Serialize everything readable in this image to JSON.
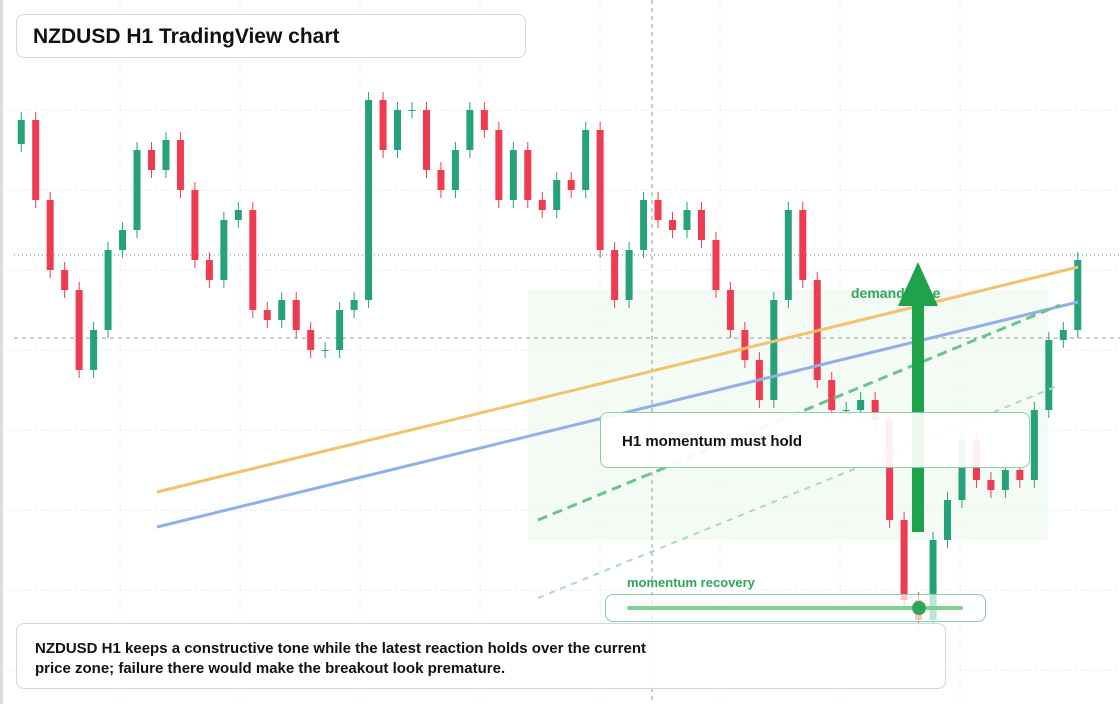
{
  "header": {
    "title": "NZDUSD H1 TradingView chart"
  },
  "chart_data": {
    "type": "candlestick",
    "ylim": [
      0,
      704
    ],
    "up_color": "#26a17b",
    "down_color": "#ef3b4f",
    "open": [
      560,
      584,
      504,
      434,
      414,
      334,
      374,
      454,
      474,
      554,
      534,
      564,
      514,
      444,
      424,
      484,
      494,
      394,
      384,
      404,
      374,
      354,
      354,
      394,
      404,
      604,
      554,
      594,
      594,
      534,
      514,
      554,
      594,
      574,
      504,
      554,
      504,
      494,
      524,
      514,
      574,
      454,
      404,
      454,
      504,
      484,
      474,
      494,
      464,
      414,
      374,
      344,
      304,
      404,
      494,
      424,
      324,
      294,
      294,
      304,
      284,
      184,
      104,
      84,
      164,
      204,
      264,
      224,
      214,
      234,
      224,
      294,
      364,
      374
    ],
    "close": [
      584,
      504,
      434,
      414,
      334,
      374,
      454,
      474,
      554,
      534,
      564,
      514,
      444,
      424,
      484,
      494,
      394,
      384,
      404,
      374,
      354,
      354,
      394,
      404,
      604,
      554,
      594,
      594,
      534,
      514,
      554,
      594,
      574,
      504,
      554,
      504,
      494,
      524,
      514,
      574,
      454,
      404,
      454,
      504,
      484,
      474,
      494,
      464,
      414,
      374,
      344,
      304,
      404,
      494,
      424,
      324,
      294,
      294,
      304,
      284,
      184,
      104,
      84,
      164,
      204,
      264,
      224,
      214,
      234,
      224,
      294,
      364,
      374,
      444
    ]
  },
  "annotations": {
    "zone": "demand zone",
    "hold": "H1 momentum must hold",
    "slider": "momentum recovery"
  },
  "footer": {
    "text": "NZDUSD H1 keeps a constructive tone while the latest reaction holds over the current price zone; failure there would make the breakout look premature."
  }
}
